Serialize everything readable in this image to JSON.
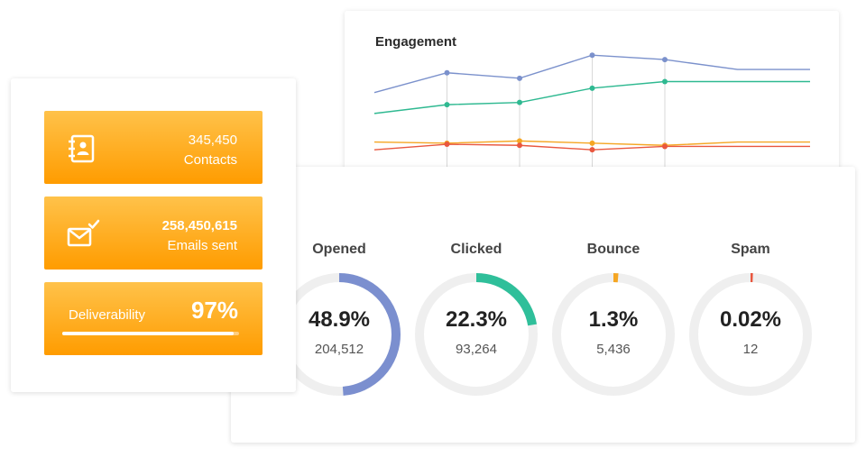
{
  "summary": {
    "contacts": {
      "icon": "address-book-icon",
      "value": "345,450",
      "caption": "Contacts"
    },
    "emails_sent": {
      "icon": "email-sent-icon",
      "value": "258,450,615",
      "caption": "Emails sent"
    },
    "deliverability": {
      "label": "Deliverability",
      "value": "97%",
      "progress": 0.97
    }
  },
  "engagement": {
    "title": "Engagement",
    "chart_data": {
      "type": "line",
      "x": [
        0,
        1,
        2,
        3,
        4,
        5,
        6
      ],
      "ylim": [
        0,
        100
      ],
      "grid": false,
      "series": [
        {
          "color": "#7b91cc",
          "values": [
            65,
            83,
            78,
            99,
            95,
            86,
            86
          ]
        },
        {
          "color": "#2fb991",
          "values": [
            46,
            54,
            56,
            69,
            75,
            75,
            75
          ]
        },
        {
          "color": "#f5a623",
          "values": [
            20,
            19,
            21,
            19,
            17,
            20,
            20
          ]
        },
        {
          "color": "#e9573f",
          "values": [
            13,
            18,
            17,
            13,
            16,
            16,
            16
          ]
        }
      ]
    }
  },
  "stats": [
    {
      "label": "Opened",
      "percent": "48.9%",
      "count": "204,512",
      "fraction": 0.489,
      "color": "#7b8fcf"
    },
    {
      "label": "Clicked",
      "percent": "22.3%",
      "count": "93,264",
      "fraction": 0.223,
      "color": "#2fbf9a"
    },
    {
      "label": "Bounce",
      "percent": "1.3%",
      "count": "5,436",
      "fraction": 0.013,
      "color": "#f5a623"
    },
    {
      "label": "Spam",
      "percent": "0.02%",
      "count": "12",
      "fraction": 0.0002,
      "color": "#e9573f"
    }
  ]
}
